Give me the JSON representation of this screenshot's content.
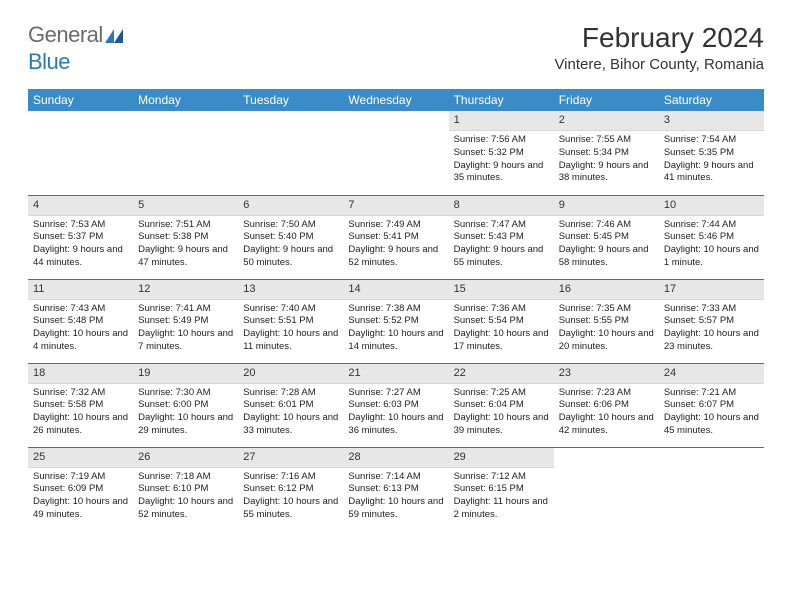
{
  "logo": {
    "gray": "General",
    "blue": "Blue"
  },
  "title": "February 2024",
  "location": "Vintere, Bihor County, Romania",
  "colors": {
    "header_bg": "#3a8cc9",
    "row_border": "#2b7ab8",
    "daynum_bg": "#e7e7e7",
    "text": "#222222"
  },
  "weekdays": [
    "Sunday",
    "Monday",
    "Tuesday",
    "Wednesday",
    "Thursday",
    "Friday",
    "Saturday"
  ],
  "weeks": [
    [
      {
        "n": "",
        "s": "",
        "ss": "",
        "d": ""
      },
      {
        "n": "",
        "s": "",
        "ss": "",
        "d": ""
      },
      {
        "n": "",
        "s": "",
        "ss": "",
        "d": ""
      },
      {
        "n": "",
        "s": "",
        "ss": "",
        "d": ""
      },
      {
        "n": "1",
        "s": "Sunrise: 7:56 AM",
        "ss": "Sunset: 5:32 PM",
        "d": "Daylight: 9 hours and 35 minutes."
      },
      {
        "n": "2",
        "s": "Sunrise: 7:55 AM",
        "ss": "Sunset: 5:34 PM",
        "d": "Daylight: 9 hours and 38 minutes."
      },
      {
        "n": "3",
        "s": "Sunrise: 7:54 AM",
        "ss": "Sunset: 5:35 PM",
        "d": "Daylight: 9 hours and 41 minutes."
      }
    ],
    [
      {
        "n": "4",
        "s": "Sunrise: 7:53 AM",
        "ss": "Sunset: 5:37 PM",
        "d": "Daylight: 9 hours and 44 minutes."
      },
      {
        "n": "5",
        "s": "Sunrise: 7:51 AM",
        "ss": "Sunset: 5:38 PM",
        "d": "Daylight: 9 hours and 47 minutes."
      },
      {
        "n": "6",
        "s": "Sunrise: 7:50 AM",
        "ss": "Sunset: 5:40 PM",
        "d": "Daylight: 9 hours and 50 minutes."
      },
      {
        "n": "7",
        "s": "Sunrise: 7:49 AM",
        "ss": "Sunset: 5:41 PM",
        "d": "Daylight: 9 hours and 52 minutes."
      },
      {
        "n": "8",
        "s": "Sunrise: 7:47 AM",
        "ss": "Sunset: 5:43 PM",
        "d": "Daylight: 9 hours and 55 minutes."
      },
      {
        "n": "9",
        "s": "Sunrise: 7:46 AM",
        "ss": "Sunset: 5:45 PM",
        "d": "Daylight: 9 hours and 58 minutes."
      },
      {
        "n": "10",
        "s": "Sunrise: 7:44 AM",
        "ss": "Sunset: 5:46 PM",
        "d": "Daylight: 10 hours and 1 minute."
      }
    ],
    [
      {
        "n": "11",
        "s": "Sunrise: 7:43 AM",
        "ss": "Sunset: 5:48 PM",
        "d": "Daylight: 10 hours and 4 minutes."
      },
      {
        "n": "12",
        "s": "Sunrise: 7:41 AM",
        "ss": "Sunset: 5:49 PM",
        "d": "Daylight: 10 hours and 7 minutes."
      },
      {
        "n": "13",
        "s": "Sunrise: 7:40 AM",
        "ss": "Sunset: 5:51 PM",
        "d": "Daylight: 10 hours and 11 minutes."
      },
      {
        "n": "14",
        "s": "Sunrise: 7:38 AM",
        "ss": "Sunset: 5:52 PM",
        "d": "Daylight: 10 hours and 14 minutes."
      },
      {
        "n": "15",
        "s": "Sunrise: 7:36 AM",
        "ss": "Sunset: 5:54 PM",
        "d": "Daylight: 10 hours and 17 minutes."
      },
      {
        "n": "16",
        "s": "Sunrise: 7:35 AM",
        "ss": "Sunset: 5:55 PM",
        "d": "Daylight: 10 hours and 20 minutes."
      },
      {
        "n": "17",
        "s": "Sunrise: 7:33 AM",
        "ss": "Sunset: 5:57 PM",
        "d": "Daylight: 10 hours and 23 minutes."
      }
    ],
    [
      {
        "n": "18",
        "s": "Sunrise: 7:32 AM",
        "ss": "Sunset: 5:58 PM",
        "d": "Daylight: 10 hours and 26 minutes."
      },
      {
        "n": "19",
        "s": "Sunrise: 7:30 AM",
        "ss": "Sunset: 6:00 PM",
        "d": "Daylight: 10 hours and 29 minutes."
      },
      {
        "n": "20",
        "s": "Sunrise: 7:28 AM",
        "ss": "Sunset: 6:01 PM",
        "d": "Daylight: 10 hours and 33 minutes."
      },
      {
        "n": "21",
        "s": "Sunrise: 7:27 AM",
        "ss": "Sunset: 6:03 PM",
        "d": "Daylight: 10 hours and 36 minutes."
      },
      {
        "n": "22",
        "s": "Sunrise: 7:25 AM",
        "ss": "Sunset: 6:04 PM",
        "d": "Daylight: 10 hours and 39 minutes."
      },
      {
        "n": "23",
        "s": "Sunrise: 7:23 AM",
        "ss": "Sunset: 6:06 PM",
        "d": "Daylight: 10 hours and 42 minutes."
      },
      {
        "n": "24",
        "s": "Sunrise: 7:21 AM",
        "ss": "Sunset: 6:07 PM",
        "d": "Daylight: 10 hours and 45 minutes."
      }
    ],
    [
      {
        "n": "25",
        "s": "Sunrise: 7:19 AM",
        "ss": "Sunset: 6:09 PM",
        "d": "Daylight: 10 hours and 49 minutes."
      },
      {
        "n": "26",
        "s": "Sunrise: 7:18 AM",
        "ss": "Sunset: 6:10 PM",
        "d": "Daylight: 10 hours and 52 minutes."
      },
      {
        "n": "27",
        "s": "Sunrise: 7:16 AM",
        "ss": "Sunset: 6:12 PM",
        "d": "Daylight: 10 hours and 55 minutes."
      },
      {
        "n": "28",
        "s": "Sunrise: 7:14 AM",
        "ss": "Sunset: 6:13 PM",
        "d": "Daylight: 10 hours and 59 minutes."
      },
      {
        "n": "29",
        "s": "Sunrise: 7:12 AM",
        "ss": "Sunset: 6:15 PM",
        "d": "Daylight: 11 hours and 2 minutes."
      },
      {
        "n": "",
        "s": "",
        "ss": "",
        "d": ""
      },
      {
        "n": "",
        "s": "",
        "ss": "",
        "d": ""
      }
    ]
  ]
}
